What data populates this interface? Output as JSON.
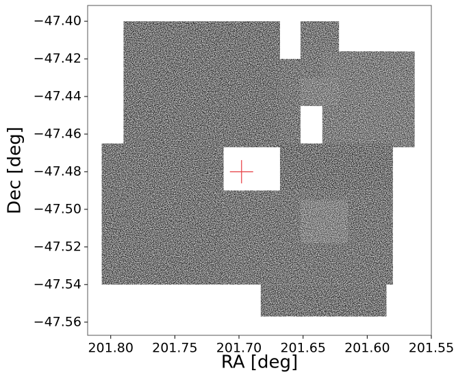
{
  "chart_data": {
    "type": "scatter",
    "xlabel": "RA [deg]",
    "ylabel": "Dec [deg]",
    "xlim": [
      201.818,
      201.55
    ],
    "ylim": [
      -47.567,
      -47.3916
    ],
    "xticks": [
      {
        "value": 201.8,
        "label": "201.80"
      },
      {
        "value": 201.75,
        "label": "201.75"
      },
      {
        "value": 201.7,
        "label": "201.70"
      },
      {
        "value": 201.65,
        "label": "201.65"
      },
      {
        "value": 201.6,
        "label": "201.60"
      },
      {
        "value": 201.55,
        "label": "201.55"
      }
    ],
    "yticks": [
      {
        "value": -47.4,
        "label": "−47.40"
      },
      {
        "value": -47.42,
        "label": "−47.42"
      },
      {
        "value": -47.44,
        "label": "−47.44"
      },
      {
        "value": -47.46,
        "label": "−47.46"
      },
      {
        "value": -47.48,
        "label": "−47.48"
      },
      {
        "value": -47.5,
        "label": "−47.50"
      },
      {
        "value": -47.52,
        "label": "−47.52"
      },
      {
        "value": -47.54,
        "label": "−47.54"
      },
      {
        "value": -47.56,
        "label": "−47.56"
      }
    ],
    "regions": [
      {
        "ra": [
          201.79,
          201.668
        ],
        "dec": [
          -47.4,
          -47.467
        ],
        "color": "#2b2b2b"
      },
      {
        "ra": [
          201.668,
          201.652
        ],
        "dec": [
          -47.42,
          -47.472
        ],
        "color": "#303030"
      },
      {
        "ra": [
          201.652,
          201.622
        ],
        "dec": [
          -47.4,
          -47.445
        ],
        "color": "#333333"
      },
      {
        "ra": [
          201.635,
          201.563
        ],
        "dec": [
          -47.416,
          -47.467
        ],
        "color": "#3c3c3c"
      },
      {
        "ra": [
          201.807,
          201.712
        ],
        "dec": [
          -47.465,
          -47.54
        ],
        "color": "#2a2a2a"
      },
      {
        "ra": [
          201.712,
          201.58
        ],
        "dec": [
          -47.49,
          -47.54
        ],
        "color": "#2e2e2e"
      },
      {
        "ra": [
          201.668,
          201.58
        ],
        "dec": [
          -47.465,
          -47.49
        ],
        "color": "#262626"
      },
      {
        "ra": [
          201.683,
          201.585
        ],
        "dec": [
          -47.54,
          -47.557
        ],
        "color": "#2a2a2a"
      },
      {
        "ra": [
          201.652,
          201.615
        ],
        "dec": [
          -47.495,
          -47.518
        ],
        "color": "#4e4e4e"
      },
      {
        "ra": [
          201.652,
          201.622
        ],
        "dec": [
          -47.43,
          -47.445
        ],
        "color": "#4a4a4a"
      }
    ],
    "marker": {
      "x": 201.698,
      "y": -47.48,
      "color": "#e8474b"
    }
  }
}
